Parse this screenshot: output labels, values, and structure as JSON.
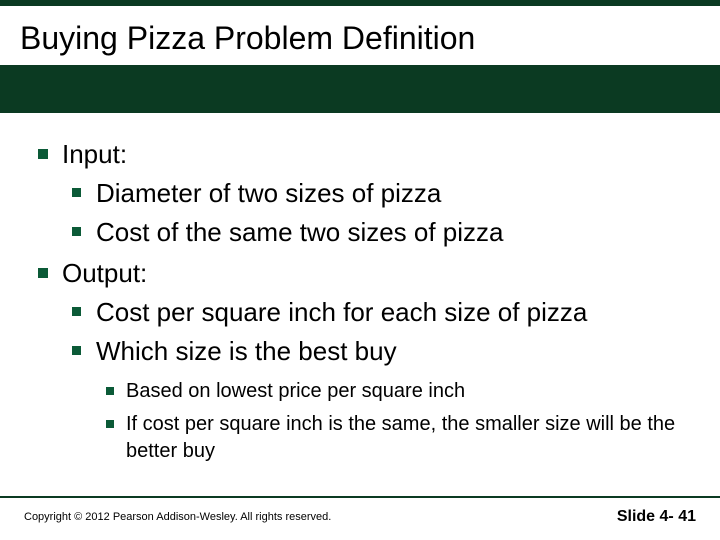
{
  "colors": {
    "header_bg": "#0b3a22",
    "bullet": "#0b5a37",
    "text": "#000000",
    "background": "#ffffff"
  },
  "typography": {
    "title_fontsize": 32,
    "lvl1_fontsize": 26,
    "lvl2_fontsize": 26,
    "lvl3_fontsize": 20,
    "footer_fontsize": 11,
    "slidenum_fontsize": 16,
    "font_family": "Arial"
  },
  "title": "Buying Pizza Problem Definition",
  "content": {
    "items": [
      {
        "text": "Input:",
        "children": [
          {
            "text": "Diameter of two sizes of pizza"
          },
          {
            "text": "Cost of the same two sizes of pizza"
          }
        ]
      },
      {
        "text": "Output:",
        "children": [
          {
            "text": "Cost per square inch for each size of pizza"
          },
          {
            "text": "Which size is the best buy",
            "children": [
              {
                "text": "Based on lowest price per square inch"
              },
              {
                "text": "If cost per square inch is the same, the smaller size will be the better buy"
              }
            ]
          }
        ]
      }
    ]
  },
  "footer": {
    "copyright": "Copyright © 2012 Pearson Addison-Wesley.  All rights reserved.",
    "slide_label": "Slide 4- 41"
  }
}
